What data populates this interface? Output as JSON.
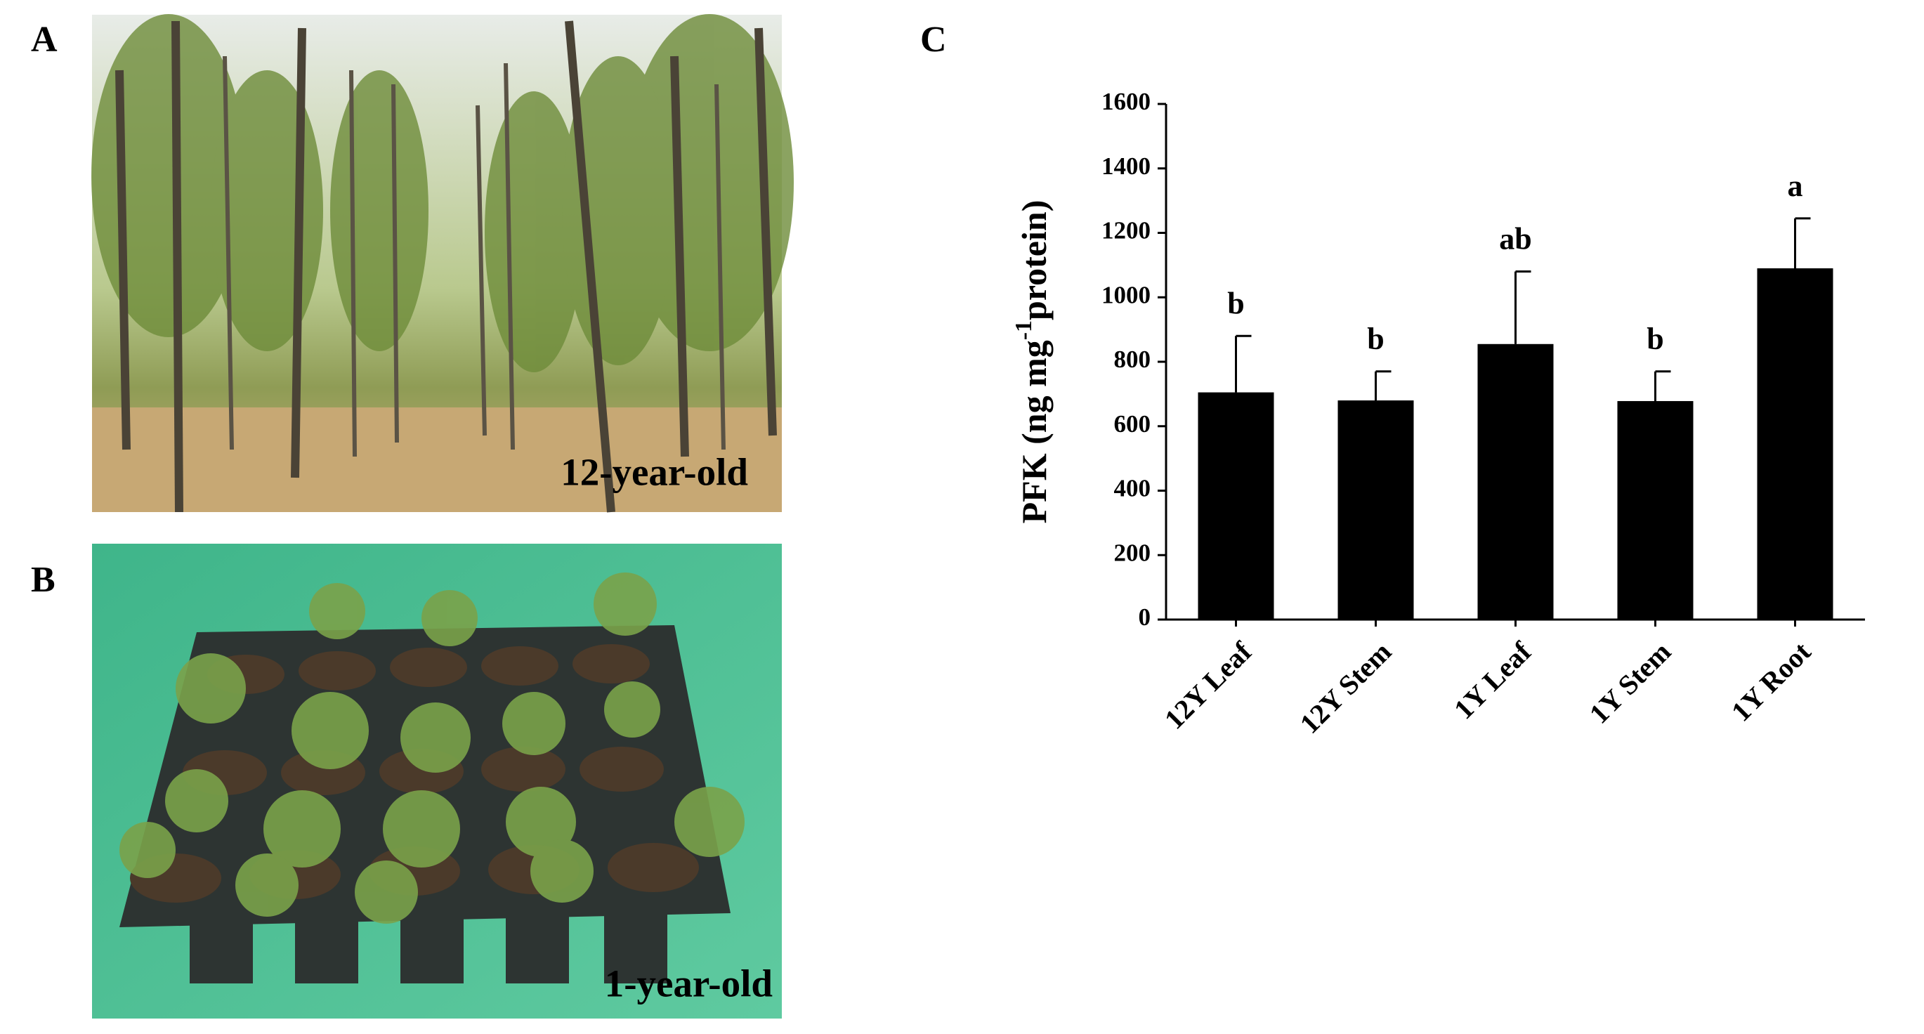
{
  "panels": [
    "A",
    "B",
    "C"
  ],
  "captions": [
    "12-year-old",
    "1-year-old"
  ],
  "chart_data": {
    "type": "bar",
    "ylabel": [
      "PFK (ng mg",
      "-1",
      "protein)"
    ],
    "categories": [
      "12Y Leaf",
      "12Y Stem",
      "1Y Leaf",
      "1Y Stem",
      "1Y Root"
    ],
    "values": [
      705,
      680,
      855,
      678,
      1090
    ],
    "errors": [
      175,
      90,
      225,
      92,
      155
    ],
    "annotations": [
      "b",
      "b",
      "ab",
      "b",
      "a"
    ],
    "color": "#000000",
    "ylim": [
      0,
      1600
    ],
    "yticks": [
      0,
      200,
      400,
      600,
      800,
      1000,
      1200,
      1400,
      1600
    ]
  }
}
